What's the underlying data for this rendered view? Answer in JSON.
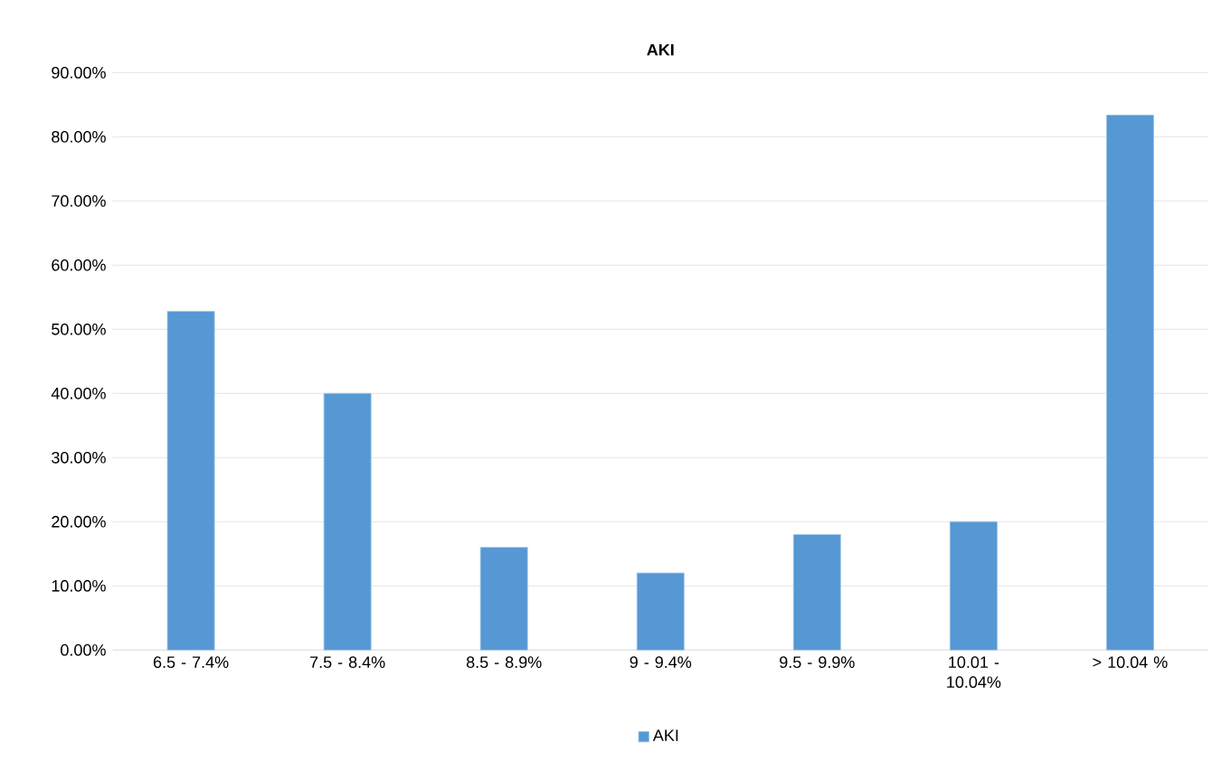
{
  "chart_data": {
    "type": "bar",
    "title": "AKI",
    "categories": [
      "6.5 - 7.4%",
      "7.5 - 8.4%",
      "8.5 - 8.9%",
      "9 - 9.4%",
      "9.5 - 9.9%",
      "10.01 - 10.04%",
      "> 10.04 %"
    ],
    "series": [
      {
        "name": "AKI",
        "color": "#5598d4",
        "values": [
          52.8,
          40,
          16,
          12,
          18,
          20,
          83.4
        ]
      }
    ],
    "ylim": [
      0,
      90
    ],
    "yticks": [
      {
        "value": 0,
        "label": "0.00%"
      },
      {
        "value": 10,
        "label": "10.00%"
      },
      {
        "value": 20,
        "label": "20.00%"
      },
      {
        "value": 30,
        "label": "30.00%"
      },
      {
        "value": 40,
        "label": "40.00%"
      },
      {
        "value": 50,
        "label": "50.00%"
      },
      {
        "value": 60,
        "label": "60.00%"
      },
      {
        "value": 70,
        "label": "70.00%"
      },
      {
        "value": 80,
        "label": "80.00%"
      },
      {
        "value": 90,
        "label": "90.00%"
      }
    ],
    "grid": "y",
    "legend": "bottom"
  }
}
